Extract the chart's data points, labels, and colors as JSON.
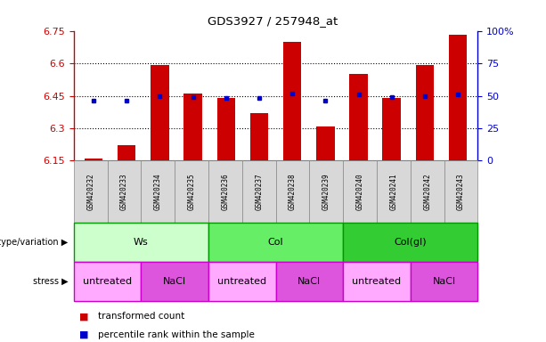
{
  "title": "GDS3927 / 257948_at",
  "samples": [
    "GSM420232",
    "GSM420233",
    "GSM420234",
    "GSM420235",
    "GSM420236",
    "GSM420237",
    "GSM420238",
    "GSM420239",
    "GSM420240",
    "GSM420241",
    "GSM420242",
    "GSM420243"
  ],
  "bar_values": [
    6.16,
    6.22,
    6.59,
    6.46,
    6.44,
    6.37,
    6.7,
    6.31,
    6.55,
    6.44,
    6.59,
    6.73
  ],
  "percentile_values": [
    46,
    46,
    50,
    49,
    48,
    48,
    52,
    46,
    51,
    49,
    50,
    51
  ],
  "bar_base": 6.15,
  "ylim": [
    6.15,
    6.75
  ],
  "y_ticks": [
    6.15,
    6.3,
    6.45,
    6.6,
    6.75
  ],
  "y_tick_labels": [
    "6.15",
    "6.3",
    "6.45",
    "6.6",
    "6.75"
  ],
  "right_ylim": [
    0,
    100
  ],
  "right_yticks": [
    0,
    25,
    50,
    75,
    100
  ],
  "right_yticklabels": [
    "0",
    "25",
    "50",
    "75",
    "100%"
  ],
  "bar_color": "#cc0000",
  "dot_color": "#0000cc",
  "left_label_color": "#cc0000",
  "right_label_color": "#0000cc",
  "genotype_groups": [
    {
      "label": "Ws",
      "start": 0,
      "end": 4,
      "color": "#ccffcc"
    },
    {
      "label": "Col",
      "start": 4,
      "end": 8,
      "color": "#66ee66"
    },
    {
      "label": "Col(gl)",
      "start": 8,
      "end": 12,
      "color": "#33cc33"
    }
  ],
  "stress_groups": [
    {
      "label": "untreated",
      "start": 0,
      "end": 2,
      "color": "#ffaaff"
    },
    {
      "label": "NaCl",
      "start": 2,
      "end": 4,
      "color": "#dd55dd"
    },
    {
      "label": "untreated",
      "start": 4,
      "end": 6,
      "color": "#ffaaff"
    },
    {
      "label": "NaCl",
      "start": 6,
      "end": 8,
      "color": "#dd55dd"
    },
    {
      "label": "untreated",
      "start": 8,
      "end": 10,
      "color": "#ffaaff"
    },
    {
      "label": "NaCl",
      "start": 10,
      "end": 12,
      "color": "#dd55dd"
    }
  ],
  "legend_items": [
    {
      "label": "transformed count",
      "color": "#cc0000"
    },
    {
      "label": "percentile rank within the sample",
      "color": "#0000cc"
    }
  ]
}
